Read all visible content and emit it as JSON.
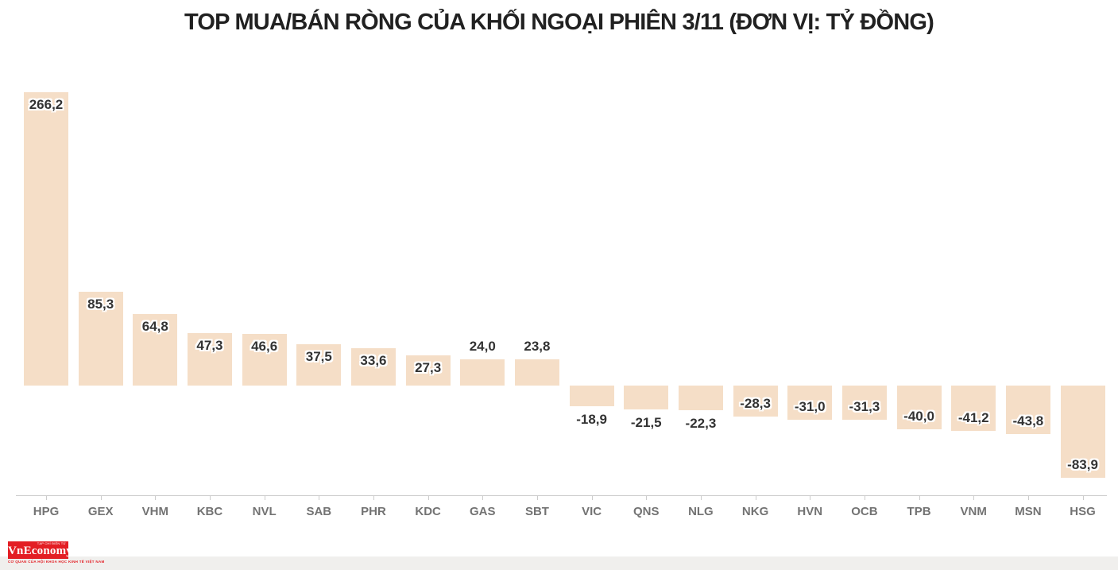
{
  "chart_data": {
    "type": "bar",
    "title": "TOP MUA/BÁN RÒNG CỦA KHỐI NGOẠI PHIÊN 3/11 (ĐƠN VỊ: TỶ ĐỒNG)",
    "unit": "tỷ đồng",
    "categories": [
      "HPG",
      "GEX",
      "VHM",
      "KBC",
      "NVL",
      "SAB",
      "PHR",
      "KDC",
      "GAS",
      "SBT",
      "VIC",
      "QNS",
      "NLG",
      "NKG",
      "HVN",
      "OCB",
      "TPB",
      "VNM",
      "MSN",
      "HSG"
    ],
    "values": [
      266.2,
      85.3,
      64.8,
      47.3,
      46.6,
      37.5,
      33.6,
      27.3,
      24.0,
      23.8,
      -18.9,
      -21.5,
      -22.3,
      -28.3,
      -31.0,
      -31.3,
      -40.0,
      -41.2,
      -43.8,
      -83.9
    ],
    "labels": [
      "266,2",
      "85,3",
      "64,8",
      "47,3",
      "46,6",
      "37,5",
      "33,6",
      "27,3",
      "24,0",
      "23,8",
      "-18,9",
      "-21,5",
      "-22,3",
      "-28,3",
      "-31,0",
      "-31,3",
      "-40,0",
      "-41,2",
      "-43,8",
      "-83,9"
    ],
    "ylim": [
      -100,
      280
    ],
    "grid": "off",
    "legend": "none",
    "colors": {
      "bar": "#F5DEC7",
      "value_label": "#333333",
      "category_label": "#737373",
      "axis": "#CCCCCC",
      "title": "#212121",
      "footer_band": "#F0EFED",
      "logo_red": "#E31E24"
    }
  },
  "branding": {
    "logo_text": "VnEconomy",
    "logo_tagline_top": "TẠP CHÍ ĐIỆN TỬ",
    "logo_tagline_bottom": "CƠ QUAN CỦA HỘI KHOA HỌC KINH TẾ VIỆT NAM"
  }
}
